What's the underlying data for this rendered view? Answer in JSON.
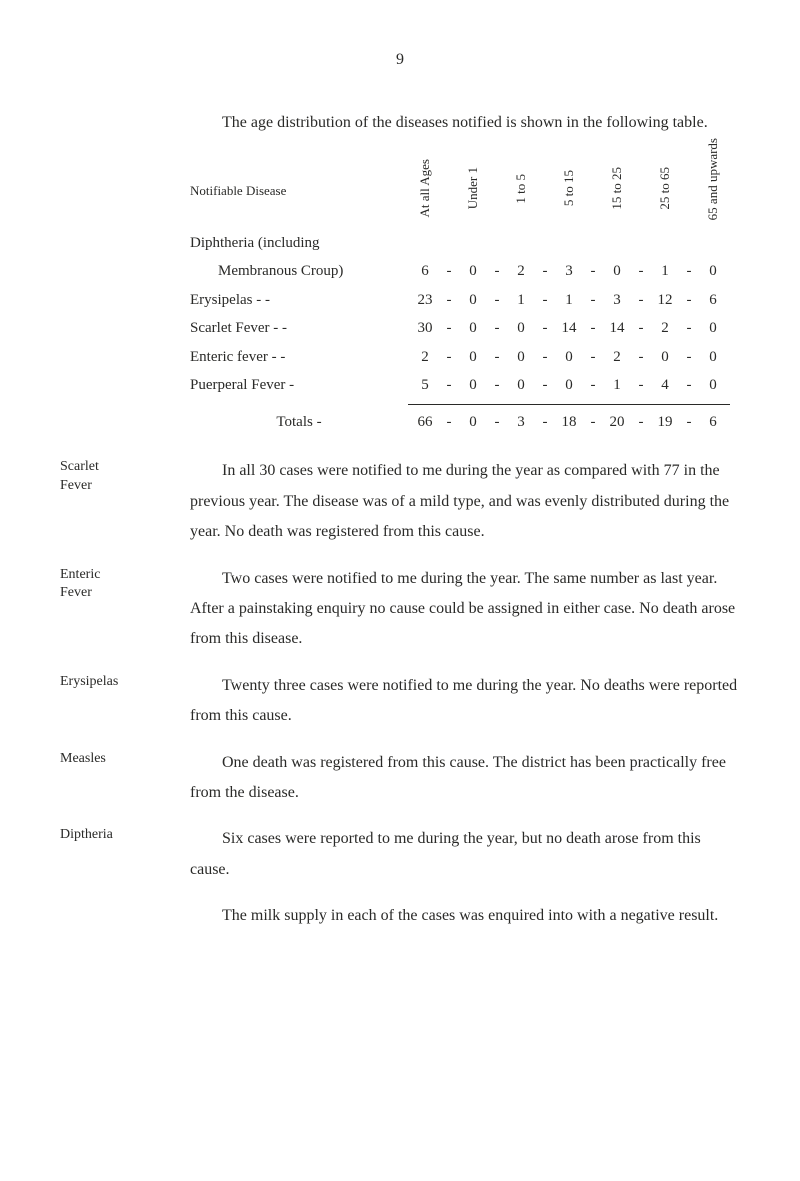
{
  "page_number": "9",
  "intro": "The age distribution of the diseases notified is shown in the following table.",
  "table": {
    "row_header_label": "Notifiable Disease",
    "columns": [
      "At\nall Ages",
      "Under 1",
      "1 to 5",
      "5 to 15",
      "15 to 25",
      "25 to 65",
      "65 and\nupwards"
    ],
    "subhead": "Diphtheria (including",
    "rows": [
      {
        "label": "Membranous Croup)",
        "indent": true,
        "vals": [
          "6",
          "0",
          "2",
          "3",
          "0",
          "1",
          "0"
        ]
      },
      {
        "label": "Erysipelas    -      -",
        "indent": false,
        "vals": [
          "23",
          "0",
          "1",
          "1",
          "3",
          "12",
          "6"
        ]
      },
      {
        "label": "Scarlet Fever -      -",
        "indent": false,
        "vals": [
          "30",
          "0",
          "0",
          "14",
          "14",
          "2",
          "0"
        ]
      },
      {
        "label": "Enteric fever -      -",
        "indent": false,
        "vals": [
          "2",
          "0",
          "0",
          "0",
          "2",
          "0",
          "0"
        ]
      },
      {
        "label": "Puerperal Fever    -",
        "indent": false,
        "vals": [
          "5",
          "0",
          "0",
          "0",
          "1",
          "4",
          "0"
        ]
      }
    ],
    "totals": {
      "label": "Totals      -",
      "vals": [
        "66",
        "0",
        "3",
        "18",
        "20",
        "19",
        "6"
      ]
    }
  },
  "sections": [
    {
      "label": "Scarlet\nFever",
      "text": "In all 30 cases were notified to me during the year as compared with 77 in the previous year.  The disease was of a mild type, and was evenly distributed during the year.  No death was registered from this cause."
    },
    {
      "label": "Enteric\nFever",
      "text": "Two cases were notified to me during the year.  The same number as last year.  After a painstaking enquiry no cause could be assigned in either case.  No death arose from this disease."
    },
    {
      "label": "Erysipelas",
      "text": "Twenty three cases were notified to me during the year.  No deaths were reported from this cause."
    },
    {
      "label": "Measles",
      "text": "One death was registered from this cause.  The district has been practically free from the disease."
    },
    {
      "label": "Diptheria",
      "text": "Six cases were reported to me during the year, but no death arose from this cause."
    }
  ],
  "closing": "The milk supply in each of the cases was enquired into with a negative result."
}
